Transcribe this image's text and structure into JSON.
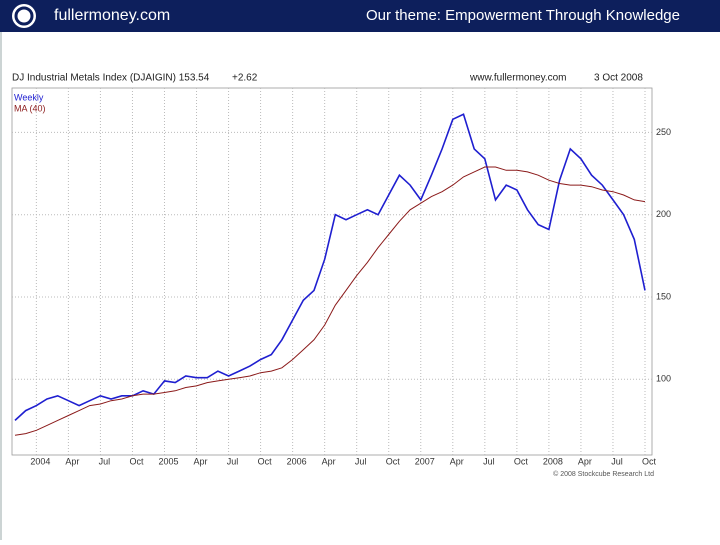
{
  "header": {
    "site": "fullermoney.com",
    "theme": "Our theme: Empowerment Through Knowledge"
  },
  "chart_data": {
    "type": "line",
    "title": "DJ Industrial Metals Index (DJAIGIN) 153.54",
    "change": "+2.62",
    "website": "www.fullermoney.com",
    "date": "3 Oct 2008",
    "copyright": "© 2008 Stockcube Research Ltd",
    "categories": [
      null,
      null,
      "2004",
      null,
      null,
      "Apr",
      null,
      null,
      "Jul",
      null,
      null,
      "Oct",
      null,
      null,
      "2005",
      null,
      null,
      "Apr",
      null,
      null,
      "Jul",
      null,
      null,
      "Oct",
      null,
      null,
      "2006",
      null,
      null,
      "Apr",
      null,
      null,
      "Jul",
      null,
      null,
      "Oct",
      null,
      null,
      "2007",
      null,
      null,
      "Apr",
      null,
      null,
      "Jul",
      null,
      null,
      "Oct",
      null,
      null,
      "2008",
      null,
      null,
      "Apr",
      null,
      null,
      "Jul",
      null,
      null,
      "Oct"
    ],
    "series": [
      {
        "name": "Weekly",
        "color": "#1f1fd0",
        "values": [
          75,
          81,
          84,
          88,
          90,
          87,
          84,
          87,
          90,
          88,
          90,
          90,
          93,
          91,
          99,
          98,
          102,
          101,
          101,
          105,
          102,
          105,
          108,
          112,
          115,
          124,
          136,
          148,
          154,
          173,
          200,
          197,
          200,
          203,
          200,
          212,
          224,
          218,
          209,
          224,
          240,
          258,
          261,
          240,
          234,
          209,
          218,
          215,
          203,
          194,
          191,
          221,
          240,
          234,
          224,
          218,
          209,
          200,
          185,
          154
        ]
      },
      {
        "name": "MA (40)",
        "color": "#8b1a1a",
        "values": [
          66,
          67,
          69,
          72,
          75,
          78,
          81,
          84,
          85,
          87,
          88,
          90,
          91,
          91,
          92,
          93,
          95,
          96,
          98,
          99,
          100,
          101,
          102,
          104,
          105,
          107,
          112,
          118,
          124,
          133,
          145,
          154,
          163,
          171,
          180,
          188,
          196,
          203,
          207,
          211,
          214,
          218,
          223,
          226,
          229,
          229,
          227,
          227,
          226,
          224,
          221,
          219,
          218,
          218,
          217,
          215,
          214,
          212,
          209,
          208
        ]
      }
    ],
    "ylim": [
      54,
      277
    ],
    "yticks": [
      100,
      150,
      200,
      250
    ],
    "grid": true
  }
}
